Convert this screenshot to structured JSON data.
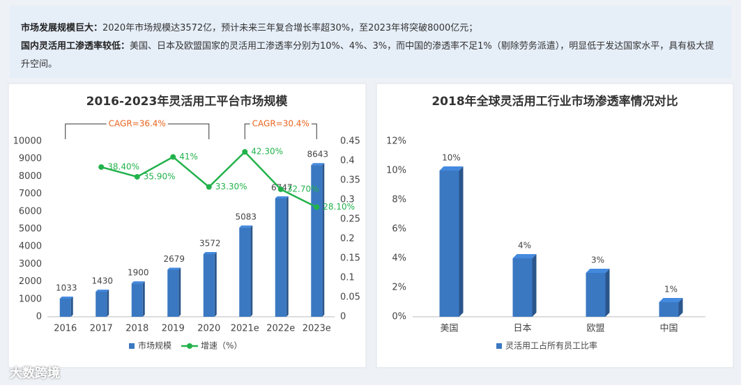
{
  "header": {
    "line1_bold": "市场发展规模巨大：",
    "line1": "2020年市场规模达3572亿，预计未来三年复合增长率超30%，至2023年将突破8000亿元；",
    "line2_bold": "国内灵活用工渗透率较低：",
    "line2": "美国、日本及欧盟国家的灵活用工渗透率分别为10%、4%、3%，而中国的渗透率不足1%（剔除劳务派遣），明显低于发达国家水平，具有极大提升空间。"
  },
  "watermark": "大数跨境",
  "chart_data": [
    {
      "type": "bar",
      "title": "2016-2023年灵活用工平台市场规模",
      "categories": [
        "2016",
        "2017",
        "2018",
        "2019",
        "2020",
        "2021e",
        "2022e",
        "2023e"
      ],
      "series": [
        {
          "name": "市场规模",
          "type": "bar",
          "color": "#3b78c2",
          "values": [
            1033,
            1430,
            1900,
            2679,
            3572,
            5083,
            6747,
            8643
          ]
        },
        {
          "name": "增速（%）",
          "type": "line",
          "axis": "y2",
          "color": "#22b24c",
          "values": [
            null,
            0.384,
            0.359,
            0.41,
            0.333,
            0.423,
            0.327,
            0.281
          ],
          "value_labels": [
            null,
            "38.40%",
            "35.90%",
            "41%",
            "33.30%",
            "42.30%",
            "32.70%",
            "28.10%"
          ]
        }
      ],
      "ylim": [
        0,
        10000
      ],
      "yticks": [
        0,
        1000,
        2000,
        3000,
        4000,
        5000,
        6000,
        7000,
        8000,
        9000,
        10000
      ],
      "y2lim": [
        0,
        0.45
      ],
      "y2ticks": [
        0,
        0.05,
        0.1,
        0.15,
        0.2,
        0.25,
        0.3,
        0.35,
        0.4,
        0.45
      ],
      "annotations": [
        {
          "text": "CAGR=36.4%"
        },
        {
          "text": "CAGR=30.4%"
        }
      ],
      "legend": "bottom"
    },
    {
      "type": "bar",
      "title": "2018年全球灵活用工行业市场渗透率情况对比",
      "categories": [
        "美国",
        "日本",
        "欧盟",
        "中国"
      ],
      "series": [
        {
          "name": "灵活用工占所有员工比率",
          "type": "bar",
          "color": "#3b78c2",
          "values": [
            10,
            4,
            3,
            1
          ],
          "value_labels": [
            "10%",
            "4%",
            "3%",
            "1%"
          ]
        }
      ],
      "ylim": [
        0,
        12
      ],
      "yticks": [
        {
          "value": 0,
          "label": "0%"
        },
        {
          "value": 2,
          "label": "2%"
        },
        {
          "value": 4,
          "label": "4%"
        },
        {
          "value": 6,
          "label": "6%"
        },
        {
          "value": 8,
          "label": "8%"
        },
        {
          "value": 10,
          "label": "10%"
        },
        {
          "value": 12,
          "label": "12%"
        }
      ],
      "legend": "bottom"
    }
  ]
}
